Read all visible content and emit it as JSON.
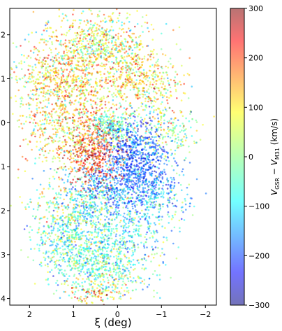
{
  "chart_data": {
    "type": "scatter",
    "title": "",
    "xlabel": "ξ (deg)",
    "ylabel": "",
    "xlim": [
      2.45,
      -2.25
    ],
    "ylim": [
      4.15,
      -2.6
    ],
    "x_ticks": [
      2,
      1,
      0,
      -1,
      -2
    ],
    "x_tick_labels": [
      "2",
      "1",
      "0",
      "−1",
      "−2"
    ],
    "y_ticks": [
      -2,
      -1,
      0,
      1,
      2,
      3,
      4
    ],
    "y_tick_labels": [
      "2",
      "1",
      "0",
      "1",
      "2",
      "3",
      "4"
    ],
    "grid": false,
    "colorbar": {
      "label_parts": [
        "V",
        "GSR",
        " − ",
        "V",
        "M31",
        " (km/s)"
      ],
      "range": [
        -300,
        300
      ],
      "ticks": [
        300,
        200,
        100,
        0,
        -100,
        -200,
        -300
      ],
      "tick_labels": [
        "300",
        "200",
        "100",
        "0",
        "−100",
        "−200",
        "−300"
      ],
      "colormap": "jet",
      "alpha": 0.55
    },
    "regions": [
      {
        "cx": 0.5,
        "cy": 0.7,
        "sx": 0.35,
        "sy": 0.45,
        "v": 230,
        "vs": 60,
        "n": 450
      },
      {
        "cx": 0.9,
        "cy": -1.0,
        "sx": 0.5,
        "sy": 0.7,
        "v": 100,
        "vs": 80,
        "n": 700
      },
      {
        "cx": 1.6,
        "cy": -0.8,
        "sx": 0.45,
        "sy": 0.6,
        "v": 60,
        "vs": 90,
        "n": 400
      },
      {
        "cx": 0.3,
        "cy": -1.8,
        "sx": 0.55,
        "sy": 0.35,
        "v": 40,
        "vs": 90,
        "n": 450
      },
      {
        "cx": -0.4,
        "cy": -1.1,
        "sx": 0.45,
        "sy": 0.4,
        "v": 110,
        "vs": 80,
        "n": 350
      },
      {
        "cx": -0.9,
        "cy": -0.7,
        "sx": 0.35,
        "sy": 0.35,
        "v": 60,
        "vs": 80,
        "n": 150
      },
      {
        "cx": 1.0,
        "cy": 0.4,
        "sx": 0.55,
        "sy": 0.35,
        "v": 90,
        "vs": 80,
        "n": 300
      },
      {
        "cx": 0.1,
        "cy": 0.1,
        "sx": 0.25,
        "sy": 0.2,
        "v": -40,
        "vs": 60,
        "n": 220
      },
      {
        "cx": -0.45,
        "cy": 0.75,
        "sx": 0.35,
        "sy": 0.4,
        "v": -190,
        "vs": 50,
        "n": 600
      },
      {
        "cx": -1.1,
        "cy": 0.2,
        "sx": 0.4,
        "sy": 0.3,
        "v": 0,
        "vs": 80,
        "n": 200
      },
      {
        "cx": -0.2,
        "cy": 1.5,
        "sx": 0.6,
        "sy": 0.3,
        "v": -170,
        "vs": 50,
        "n": 450
      },
      {
        "cx": -0.9,
        "cy": 1.8,
        "sx": 0.35,
        "sy": 0.35,
        "v": -90,
        "vs": 70,
        "n": 180
      },
      {
        "cx": 0.6,
        "cy": 1.9,
        "sx": 0.45,
        "sy": 0.45,
        "v": -60,
        "vs": 80,
        "n": 400
      },
      {
        "cx": 1.3,
        "cy": 2.1,
        "sx": 0.4,
        "sy": 0.5,
        "v": 0,
        "vs": 90,
        "n": 250
      },
      {
        "cx": 0.9,
        "cy": 2.9,
        "sx": 0.5,
        "sy": 0.4,
        "v": -50,
        "vs": 70,
        "n": 500
      },
      {
        "cx": 0.3,
        "cy": 3.4,
        "sx": 0.5,
        "sy": 0.35,
        "v": -10,
        "vs": 80,
        "n": 350
      },
      {
        "cx": -0.3,
        "cy": 2.7,
        "sx": 0.45,
        "sy": 0.45,
        "v": -80,
        "vs": 80,
        "n": 300
      },
      {
        "cx": 0.4,
        "cy": 3.9,
        "sx": 0.3,
        "sy": 0.12,
        "v": 150,
        "vs": 80,
        "n": 60
      }
    ]
  }
}
